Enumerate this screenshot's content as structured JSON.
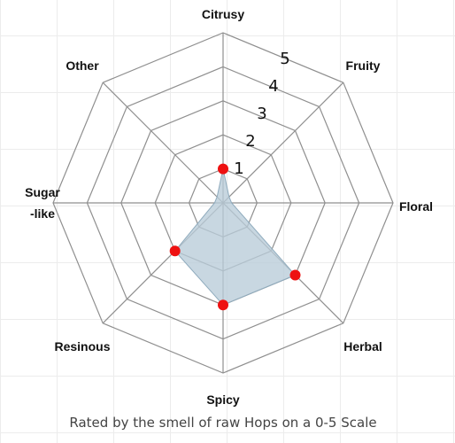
{
  "caption": "Rated by the smell of raw Hops on a 0-5 Scale",
  "chart_data": {
    "type": "radar",
    "axes": [
      "Citrusy",
      "Fruity",
      "Floral",
      "Herbal",
      "Spicy",
      "Resinous",
      "Sugar -like",
      "Other"
    ],
    "axis_label_lines": [
      [
        "Citrusy"
      ],
      [
        "Fruity"
      ],
      [
        "Floral"
      ],
      [
        "Herbal"
      ],
      [
        "Spicy"
      ],
      [
        "Resinous"
      ],
      [
        "Sugar",
        "-like"
      ],
      [
        "Other"
      ]
    ],
    "ring_labels": [
      "1",
      "2",
      "3",
      "4",
      "5"
    ],
    "range": [
      0,
      5
    ],
    "series": [
      {
        "values": [
          1,
          0,
          0,
          3,
          3,
          2,
          0,
          0
        ]
      }
    ],
    "colors": {
      "fill": "#b9ccd8",
      "stroke": "#8fabbd",
      "marker": "#ee1111",
      "grid": "#8f8f8f"
    },
    "title": "",
    "legend": "none"
  }
}
